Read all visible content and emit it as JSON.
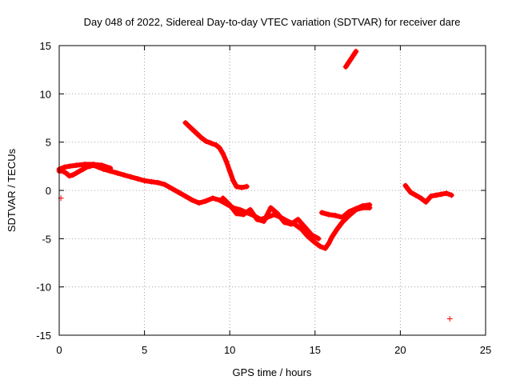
{
  "chart_data": {
    "type": "scatter",
    "title": "Day 048 of 2022, Sidereal Day-to-day VTEC variation (SDTVAR) for receiver dare",
    "xlabel": "GPS time / hours",
    "ylabel": "SDTVAR / TECUs",
    "xlim": [
      0,
      25
    ],
    "ylim": [
      -15,
      15
    ],
    "xticks": [
      0,
      5,
      10,
      15,
      20,
      25
    ],
    "yticks": [
      -15,
      -10,
      -5,
      0,
      5,
      10,
      15
    ],
    "xtick_labels": [
      "0",
      "5",
      "10",
      "15",
      "20",
      "25"
    ],
    "ytick_labels": [
      "-15",
      "-10",
      "-5",
      "0",
      "5",
      "10",
      "15"
    ],
    "grid": true,
    "marker": "+",
    "color": "#ff0000",
    "series": [
      {
        "name": "segment-1-main",
        "x": [
          0.0,
          0.2,
          0.4,
          0.6,
          0.8,
          1.0,
          1.2,
          1.4,
          1.6,
          1.8,
          2.0,
          2.3,
          2.6,
          3.0,
          3.4,
          3.8,
          4.2,
          4.6,
          5.0,
          5.4,
          5.8,
          6.2,
          6.6,
          7.0,
          7.4,
          7.8,
          8.2,
          8.6,
          9.0,
          9.4,
          9.8,
          10.2,
          10.6,
          11.0,
          11.4,
          11.8,
          12.2,
          12.6,
          13.0,
          13.4,
          13.8,
          14.2,
          14.6,
          15.0,
          15.3,
          15.6,
          15.8,
          16.0,
          16.3,
          16.6,
          17.0,
          17.4,
          17.8,
          18.2
        ],
        "y": [
          2.0,
          2.0,
          1.8,
          1.5,
          1.6,
          1.8,
          2.0,
          2.2,
          2.4,
          2.5,
          2.6,
          2.4,
          2.2,
          2.0,
          1.8,
          1.6,
          1.4,
          1.2,
          1.0,
          0.9,
          0.8,
          0.6,
          0.2,
          -0.2,
          -0.6,
          -1.0,
          -1.3,
          -1.1,
          -0.8,
          -1.0,
          -1.4,
          -1.8,
          -2.0,
          -2.3,
          -2.6,
          -3.0,
          -2.8,
          -2.5,
          -2.8,
          -3.2,
          -3.5,
          -4.0,
          -4.8,
          -5.4,
          -5.8,
          -6.0,
          -5.5,
          -4.8,
          -4.0,
          -3.3,
          -2.6,
          -2.0,
          -1.8,
          -1.8
        ]
      },
      {
        "name": "segment-1-upper-band",
        "x": [
          0.0,
          0.3,
          0.6,
          1.0,
          1.5,
          2.0,
          2.5,
          3.0
        ],
        "y": [
          2.2,
          2.4,
          2.5,
          2.6,
          2.7,
          2.7,
          2.6,
          2.3
        ]
      },
      {
        "name": "segment-1-noisy-band",
        "x": [
          9.6,
          10.0,
          10.4,
          10.8,
          11.2,
          11.6,
          12.0,
          12.4,
          12.8,
          13.2,
          13.6,
          14.0,
          14.4,
          14.8,
          15.2
        ],
        "y": [
          -0.8,
          -1.5,
          -2.4,
          -2.5,
          -2.0,
          -3.0,
          -3.2,
          -1.8,
          -2.4,
          -3.3,
          -3.5,
          -3.0,
          -3.8,
          -4.6,
          -5.0
        ]
      },
      {
        "name": "segment-1-outlier",
        "x": [
          0.1
        ],
        "y": [
          -0.8
        ]
      },
      {
        "name": "segment-2-descending",
        "x": [
          7.4,
          7.7,
          8.0,
          8.3,
          8.6,
          8.9,
          9.2,
          9.4,
          9.6,
          9.8,
          10.0,
          10.2,
          10.4,
          10.7,
          11.0
        ],
        "y": [
          7.0,
          6.5,
          6.0,
          5.5,
          5.1,
          4.9,
          4.7,
          4.4,
          3.8,
          3.0,
          2.0,
          1.0,
          0.4,
          0.3,
          0.4
        ]
      },
      {
        "name": "segment-3-rising",
        "x": [
          16.8,
          16.95,
          17.1,
          17.25,
          17.4
        ],
        "y": [
          12.8,
          13.2,
          13.6,
          14.0,
          14.4
        ]
      },
      {
        "name": "segment-4-late",
        "x": [
          15.4,
          15.8,
          16.2,
          16.6,
          17.0,
          17.4,
          17.8,
          18.2
        ],
        "y": [
          -2.3,
          -2.5,
          -2.6,
          -2.8,
          -2.2,
          -1.9,
          -1.6,
          -1.5
        ]
      },
      {
        "name": "segment-5-evening",
        "x": [
          20.3,
          20.6,
          20.9,
          21.2,
          21.5,
          21.8,
          22.1,
          22.4,
          22.7,
          23.0
        ],
        "y": [
          0.5,
          -0.2,
          -0.5,
          -0.8,
          -1.2,
          -0.6,
          -0.5,
          -0.4,
          -0.3,
          -0.5
        ]
      },
      {
        "name": "segment-6-final-outlier",
        "x": [
          22.9
        ],
        "y": [
          -13.3
        ]
      }
    ]
  }
}
